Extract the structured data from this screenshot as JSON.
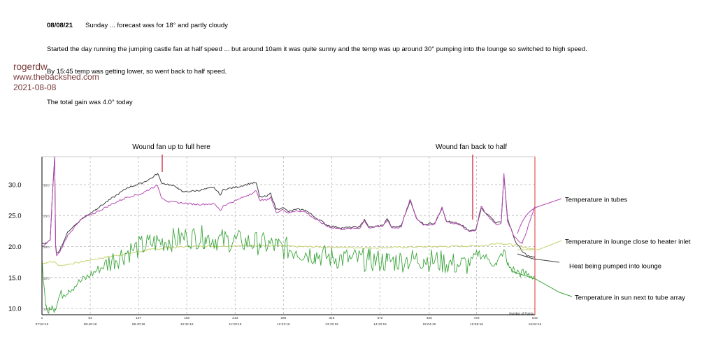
{
  "notes": {
    "date": "08/08/21",
    "day_line": "Sunday  ...  forecast was for 18° and partly cloudy",
    "line1": "Started the day running the jumping castle fan at half speed  ...  but around 10am it was quite sunny and the temp was up around 30° pumping into the lounge so switched to high speed.",
    "line2": "By 15:45 temp was getting lower, so went back to half speed.",
    "line3": "The total gain was 4.0° today"
  },
  "poster": {
    "name": "rogerdw",
    "site": "www.thebackshed.com",
    "date": "2021-08-08"
  },
  "colors": {
    "tubes": "#b44ab4",
    "lounge_inlet": "#c8d26e",
    "heat_pumped": "#404040",
    "sun": "#3ea63e",
    "marker": "#c8102e",
    "frame_right": "#e03030",
    "grid": "#b8b8b8",
    "poster": "#7a3b3b"
  },
  "chart_data": {
    "type": "line",
    "title": "",
    "xlabel": "",
    "ylabel": "",
    "x_range": [
      1,
      542
    ],
    "ylim": [
      9,
      34.5
    ],
    "grid": true,
    "y_ticks": [
      {
        "value": 10,
        "label": "10.0",
        "inner": "10.0"
      },
      {
        "value": 15,
        "label": "15.0",
        "inner": "15.0"
      },
      {
        "value": 20,
        "label": "20.0",
        "inner": "20.0"
      },
      {
        "value": 25,
        "label": "25.0",
        "inner": "25.0"
      },
      {
        "value": 30,
        "label": "30.0",
        "inner": "30.0"
      }
    ],
    "x_ticks": [
      {
        "x": 1,
        "index": "1",
        "time": "07:52:16"
      },
      {
        "x": 54,
        "index": "54",
        "time": "08:46:16"
      },
      {
        "x": 107,
        "index": "107",
        "time": "09:40:16"
      },
      {
        "x": 160,
        "index": "160",
        "time": "10:34:16"
      },
      {
        "x": 213,
        "index": "213",
        "time": "11:28:16"
      },
      {
        "x": 266,
        "index": "266",
        "time": "12:22:16"
      },
      {
        "x": 319,
        "index": "319",
        "time": "13:16:16"
      },
      {
        "x": 372,
        "index": "372",
        "time": "14:10:16"
      },
      {
        "x": 426,
        "index": "426",
        "time": "15:04:16"
      },
      {
        "x": 478,
        "index": "478",
        "time": "15:58:16"
      },
      {
        "x": 542,
        "index": "542",
        "time": "16:52:16"
      }
    ],
    "points_label": "Number of Points",
    "annotations": [
      {
        "text": "Wound fan up to full here",
        "x": 128
      },
      {
        "text": "Wound fan back to half",
        "x": 467
      }
    ],
    "series": [
      {
        "name": "Temperature in tubes",
        "key": "tubes",
        "noise": 0.15,
        "points": [
          [
            1,
            20
          ],
          [
            6,
            20.5
          ],
          [
            10,
            21
          ],
          [
            12,
            27
          ],
          [
            15,
            34.5
          ],
          [
            16,
            20
          ],
          [
            17,
            18.5
          ],
          [
            20,
            19
          ],
          [
            30,
            22
          ],
          [
            45,
            24.5
          ],
          [
            60,
            25.5
          ],
          [
            80,
            27
          ],
          [
            95,
            28
          ],
          [
            110,
            28.5
          ],
          [
            122,
            29.5
          ],
          [
            128,
            29.8
          ],
          [
            132,
            28
          ],
          [
            140,
            27.2
          ],
          [
            150,
            27.1
          ],
          [
            170,
            26.8
          ],
          [
            190,
            26.9
          ],
          [
            197,
            25.8
          ],
          [
            200,
            26.6
          ],
          [
            215,
            27.5
          ],
          [
            230,
            28.5
          ],
          [
            236,
            29
          ],
          [
            240,
            27.5
          ],
          [
            248,
            27.5
          ],
          [
            252,
            28
          ],
          [
            258,
            25.5
          ],
          [
            265,
            26
          ],
          [
            272,
            25.4
          ],
          [
            280,
            25.8
          ],
          [
            290,
            25.6
          ],
          [
            300,
            24.5
          ],
          [
            315,
            23.2
          ],
          [
            330,
            22.8
          ],
          [
            350,
            23
          ],
          [
            355,
            24.2
          ],
          [
            360,
            23
          ],
          [
            375,
            23.3
          ],
          [
            380,
            24.3
          ],
          [
            385,
            23
          ],
          [
            395,
            23.1
          ],
          [
            405,
            27.6
          ],
          [
            412,
            24.5
          ],
          [
            420,
            23.5
          ],
          [
            432,
            23.6
          ],
          [
            440,
            26.4
          ],
          [
            445,
            24
          ],
          [
            460,
            23.5
          ],
          [
            470,
            22.4
          ],
          [
            477,
            22.6
          ],
          [
            483,
            26.5
          ],
          [
            490,
            25
          ],
          [
            500,
            23.5
          ],
          [
            505,
            23.8
          ],
          [
            508,
            31.8
          ],
          [
            512,
            24
          ],
          [
            520,
            21.5
          ],
          [
            528,
            20.5
          ],
          [
            534,
            23
          ],
          [
            542,
            26.5
          ]
        ]
      },
      {
        "name": "Temperature in lounge close to heater inlet",
        "key": "lounge_inlet",
        "noise": 0.15,
        "points": [
          [
            1,
            17.2
          ],
          [
            6,
            17.4
          ],
          [
            10,
            17.6
          ],
          [
            15,
            17.5
          ],
          [
            20,
            16.9
          ],
          [
            40,
            17.4
          ],
          [
            60,
            18
          ],
          [
            80,
            18.5
          ],
          [
            100,
            19
          ],
          [
            120,
            19.5
          ],
          [
            140,
            19.8
          ],
          [
            160,
            20
          ],
          [
            200,
            20.1
          ],
          [
            240,
            20.2
          ],
          [
            280,
            20
          ],
          [
            320,
            19.9
          ],
          [
            360,
            19.8
          ],
          [
            400,
            19.9
          ],
          [
            440,
            20
          ],
          [
            470,
            20.1
          ],
          [
            490,
            20.2
          ],
          [
            500,
            20.6
          ],
          [
            510,
            20.4
          ],
          [
            525,
            20.1
          ],
          [
            542,
            19.5
          ]
        ]
      },
      {
        "name": "Heat being pumped into lounge",
        "key": "heat_pumped",
        "noise": 0.15,
        "points": [
          [
            1,
            20.5
          ],
          [
            6,
            20.5
          ],
          [
            10,
            21
          ],
          [
            12,
            27
          ],
          [
            15,
            34.5
          ],
          [
            16,
            20.2
          ],
          [
            17,
            19
          ],
          [
            20,
            19.3
          ],
          [
            30,
            22.5
          ],
          [
            45,
            24.5
          ],
          [
            60,
            26
          ],
          [
            80,
            28
          ],
          [
            95,
            29.5
          ],
          [
            110,
            30.2
          ],
          [
            122,
            31.1
          ],
          [
            128,
            31.8
          ],
          [
            132,
            30.3
          ],
          [
            140,
            30
          ],
          [
            150,
            29.5
          ],
          [
            155,
            28.8
          ],
          [
            170,
            29
          ],
          [
            190,
            29.5
          ],
          [
            197,
            28.3
          ],
          [
            200,
            29.2
          ],
          [
            215,
            29.6
          ],
          [
            230,
            30.2
          ],
          [
            236,
            30.3
          ],
          [
            240,
            28
          ],
          [
            248,
            28.1
          ],
          [
            252,
            28.6
          ],
          [
            258,
            26
          ],
          [
            265,
            26.3
          ],
          [
            272,
            25.6
          ],
          [
            280,
            26
          ],
          [
            290,
            25.9
          ],
          [
            300,
            24.8
          ],
          [
            315,
            23.4
          ],
          [
            330,
            23
          ],
          [
            350,
            23.2
          ],
          [
            355,
            24.4
          ],
          [
            360,
            23.1
          ],
          [
            375,
            23.4
          ],
          [
            380,
            24.5
          ],
          [
            385,
            23.1
          ],
          [
            395,
            23.3
          ],
          [
            405,
            27.4
          ],
          [
            412,
            24.6
          ],
          [
            420,
            23.6
          ],
          [
            432,
            23.8
          ],
          [
            440,
            26.2
          ],
          [
            445,
            24.1
          ],
          [
            460,
            23.6
          ],
          [
            470,
            22.5
          ],
          [
            477,
            22.7
          ],
          [
            483,
            26.2
          ],
          [
            490,
            25.2
          ],
          [
            500,
            23.8
          ],
          [
            505,
            24
          ],
          [
            508,
            31.5
          ],
          [
            512,
            24.5
          ],
          [
            520,
            21
          ],
          [
            528,
            19.2
          ],
          [
            534,
            18.5
          ],
          [
            542,
            18.2
          ]
        ]
      },
      {
        "name": "Temperature in sun next to tube array",
        "key": "sun",
        "noise": 1.2,
        "points": [
          [
            1,
            18
          ],
          [
            3,
            14
          ],
          [
            5,
            10.5
          ],
          [
            7,
            9.5
          ],
          [
            9,
            10.2
          ],
          [
            12,
            10.5
          ],
          [
            15,
            10
          ],
          [
            17,
            10.3
          ],
          [
            20,
            12
          ],
          [
            30,
            13
          ],
          [
            40,
            14
          ],
          [
            50,
            15
          ],
          [
            60,
            16
          ],
          [
            80,
            18
          ],
          [
            100,
            19.5
          ],
          [
            120,
            20.5
          ],
          [
            140,
            21
          ],
          [
            160,
            21.5
          ],
          [
            180,
            21.5
          ],
          [
            200,
            21
          ],
          [
            220,
            20.8
          ],
          [
            240,
            20.5
          ],
          [
            260,
            20
          ],
          [
            280,
            19.3
          ],
          [
            300,
            18.8
          ],
          [
            320,
            18.2
          ],
          [
            340,
            18
          ],
          [
            360,
            17.8
          ],
          [
            380,
            17.6
          ],
          [
            400,
            17.8
          ],
          [
            420,
            18
          ],
          [
            440,
            17.5
          ],
          [
            460,
            17
          ],
          [
            470,
            17.2
          ],
          [
            480,
            19
          ],
          [
            490,
            18
          ],
          [
            500,
            17
          ],
          [
            508,
            19.5
          ],
          [
            512,
            17
          ],
          [
            520,
            16
          ],
          [
            530,
            15.6
          ],
          [
            542,
            15.2
          ]
        ]
      }
    ]
  }
}
